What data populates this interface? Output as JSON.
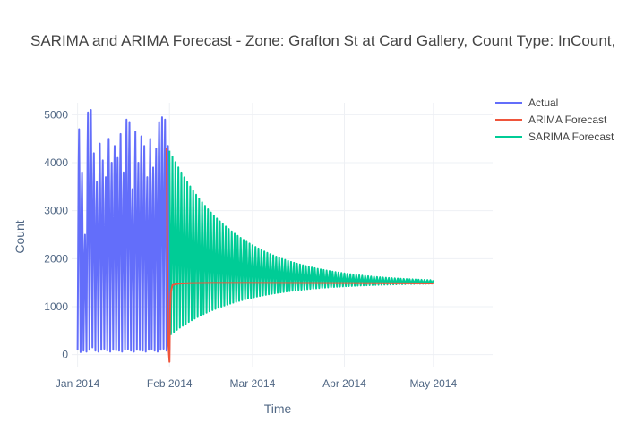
{
  "chart_data": {
    "type": "line",
    "title": "SARIMA and ARIMA Forecast - Zone: Grafton St at Card Gallery, Count Type: InCount,",
    "xlabel": "Time",
    "ylabel": "Count",
    "x_range": [
      "2013-12-30",
      "2014-05-21"
    ],
    "ylim": [
      -250,
      5250
    ],
    "x_ticks": [
      {
        "date": "2014-01-01",
        "label": "Jan 2014"
      },
      {
        "date": "2014-02-01",
        "label": "Feb 2014"
      },
      {
        "date": "2014-03-01",
        "label": "Mar 2014"
      },
      {
        "date": "2014-04-01",
        "label": "Apr 2014"
      },
      {
        "date": "2014-05-01",
        "label": "May 2014"
      }
    ],
    "y_ticks": [
      0,
      1000,
      2000,
      3000,
      4000,
      5000
    ],
    "grid": true,
    "legend_position": "top-right",
    "series": [
      {
        "name": "Actual",
        "color": "#636efa",
        "x": [
          "2014-01-01",
          "2014-01-02",
          "2014-01-03",
          "2014-01-04",
          "2014-01-05",
          "2014-01-06",
          "2014-01-07",
          "2014-01-08",
          "2014-01-09",
          "2014-01-10",
          "2014-01-11",
          "2014-01-12",
          "2014-01-13",
          "2014-01-14",
          "2014-01-15",
          "2014-01-16",
          "2014-01-17",
          "2014-01-18",
          "2014-01-19",
          "2014-01-20",
          "2014-01-21",
          "2014-01-22",
          "2014-01-23",
          "2014-01-24",
          "2014-01-25",
          "2014-01-26",
          "2014-01-27",
          "2014-01-28",
          "2014-01-29",
          "2014-01-30",
          "2014-01-31"
        ],
        "daily_peaks": [
          4700,
          3800,
          2500,
          5050,
          5100,
          4200,
          3600,
          4400,
          4050,
          3700,
          4500,
          4000,
          4350,
          4100,
          4600,
          3800,
          4900,
          4850,
          3450,
          4650,
          4000,
          4550,
          4350,
          3700,
          4500,
          3900,
          4300,
          4850,
          4950,
          4900,
          4350
        ],
        "daily_troughs": [
          100,
          50,
          80,
          60,
          100,
          150,
          80,
          60,
          100,
          120,
          80,
          60,
          100,
          90,
          80,
          60,
          100,
          110,
          80,
          60,
          100,
          90,
          80,
          60,
          100,
          110,
          80,
          60,
          100,
          120,
          80
        ]
      },
      {
        "name": "ARIMA Forecast",
        "color": "#ef553b",
        "x": [
          "2014-01-31",
          "2014-01-31",
          "2014-02-01",
          "2014-02-01",
          "2014-02-01",
          "2014-02-02",
          "2014-02-04",
          "2014-02-08",
          "2014-02-15",
          "2014-03-01",
          "2014-04-01",
          "2014-05-01"
        ],
        "y": [
          4300,
          300,
          -150,
          900,
          1300,
          1450,
          1480,
          1490,
          1495,
          1495,
          1490,
          1485
        ]
      },
      {
        "name": "SARIMA Forecast",
        "color": "#00cc96",
        "x_start": "2014-02-01",
        "x_end": "2014-05-01",
        "center": 1500,
        "initial_high": 4250,
        "initial_low": 400,
        "decay_per_day": 0.045
      }
    ]
  }
}
